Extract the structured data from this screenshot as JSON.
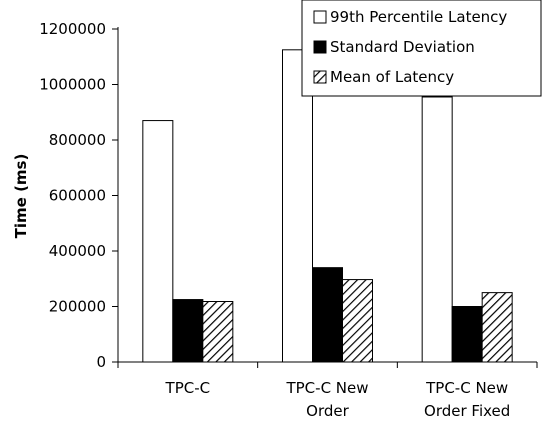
{
  "chart_data": {
    "type": "bar",
    "title": "",
    "xlabel": "",
    "ylabel": "Time (ms)",
    "ylim": [
      0,
      1200000
    ],
    "yticks": [
      0,
      200000,
      400000,
      600000,
      800000,
      1000000,
      1200000
    ],
    "categories": [
      [
        "TPC-C"
      ],
      [
        "TPC-C New",
        "Order"
      ],
      [
        "TPC-C New",
        "Order Fixed"
      ]
    ],
    "series": [
      {
        "name": "99th Percentile Latency",
        "values": [
          870000,
          1125000,
          955000
        ],
        "fill": "white"
      },
      {
        "name": "Standard Deviation",
        "values": [
          225000,
          340000,
          200000
        ],
        "fill": "black"
      },
      {
        "name": "Mean of Latency",
        "values": [
          218000,
          297000,
          250000
        ],
        "fill": "hatch"
      }
    ],
    "grid": false,
    "legend_position": "top-right"
  },
  "colors": {
    "bar_outline": "#000000",
    "solid_fill": "#000000",
    "open_fill": "#ffffff"
  }
}
